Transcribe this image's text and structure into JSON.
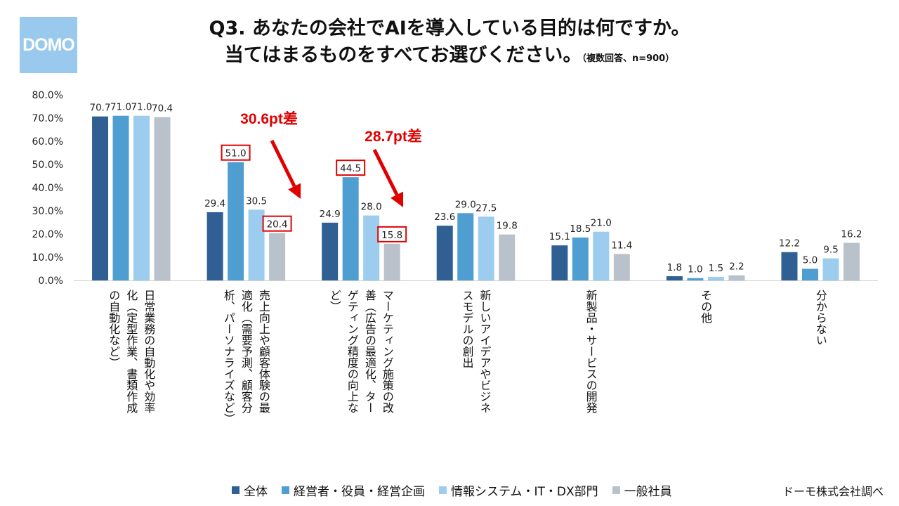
{
  "logo": {
    "text": "DOMO"
  },
  "title": {
    "line1": "Q3. あなたの会社でAIを導入している目的は何ですか。",
    "line2": "当てはまるものをすべてお選びください。",
    "note": "（複数回答、n=900）"
  },
  "source": "ドーモ株式会社調べ",
  "colors": {
    "s0": "#2f5f93",
    "s1": "#4f9ed2",
    "s2": "#9dcdee",
    "s3": "#b9c1cb",
    "highlight": "#e00000",
    "axis": "#d0d0d0"
  },
  "chart_data": {
    "type": "bar",
    "title": "Q3. あなたの会社でAIを導入している目的は何ですか。当てはまるものをすべてお選びください。",
    "ylim": [
      0,
      80
    ],
    "yticks": [
      "0.0%",
      "10.0%",
      "20.0%",
      "30.0%",
      "40.0%",
      "50.0%",
      "60.0%",
      "70.0%",
      "80.0%"
    ],
    "categories": [
      "日常業務の自動化や効率化（定型作業、書類作成の自動化など）",
      "売上向上や顧客体験の最適化（需要予測、顧客分析、パーソナライズなど）",
      "マーケティング施策の改善（広告の最適化、ターゲティング精度の向上など）",
      "新しいアイデアやビジネスモデルの創出",
      "新製品・サービスの開発",
      "その他",
      "分からない"
    ],
    "category_lines": [
      [
        "日常業務の自動化や効率",
        "化（定型作業、書類作成",
        "の自動化など）"
      ],
      [
        "売上向上や顧客体験の最",
        "適化（需要予測、顧客分",
        "析、パーソナライズなど）"
      ],
      [
        "マーケティング施策の改",
        "善（広告の最適化、ター",
        "ゲティング精度の向上な",
        "ど）"
      ],
      [
        "新しいアイデアやビジネ",
        "スモデルの創出"
      ],
      [
        "新製品・サービスの開発"
      ],
      [
        "その他"
      ],
      [
        "分からない"
      ]
    ],
    "series": [
      {
        "name": "全体",
        "values": [
          70.7,
          29.4,
          24.9,
          23.6,
          15.1,
          1.8,
          12.2
        ]
      },
      {
        "name": "経営者・役員・経営企画",
        "values": [
          71.0,
          51.0,
          44.5,
          29.0,
          18.5,
          1.0,
          5.0
        ]
      },
      {
        "name": "情報システム・IT・DX部門",
        "values": [
          71.0,
          30.5,
          28.0,
          27.5,
          21.0,
          1.5,
          9.5
        ]
      },
      {
        "name": "一般社員",
        "values": [
          70.4,
          20.4,
          15.8,
          19.8,
          11.4,
          2.2,
          16.2
        ]
      }
    ],
    "data_labels": [
      [
        "70.7",
        "29.4",
        "24.9",
        "23.6",
        "15.1",
        "1.8",
        "12.2"
      ],
      [
        "71.0",
        "51.0",
        "44.5",
        "29.0",
        "18.5",
        "1.0",
        "5.0"
      ],
      [
        "71.0",
        "30.5",
        "28.0",
        "27.5",
        "21.0",
        "1.5",
        "9.5"
      ],
      [
        "70.4",
        "20.4",
        "15.8",
        "19.8",
        "11.4",
        "2.2",
        "16.2"
      ]
    ],
    "boxed_labels": [
      [
        1,
        1
      ],
      [
        1,
        3
      ],
      [
        2,
        1
      ],
      [
        2,
        3
      ]
    ],
    "annotations": [
      {
        "text": "30.6pt差",
        "category": 1,
        "from_series": 1,
        "to_series": 3
      },
      {
        "text": "28.7pt差",
        "category": 2,
        "from_series": 1,
        "to_series": 3
      }
    ]
  }
}
